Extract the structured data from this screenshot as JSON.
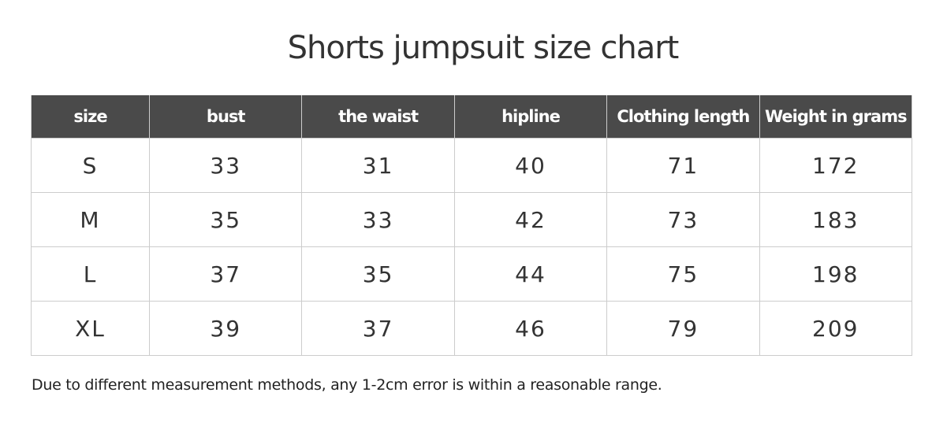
{
  "title": "Shorts jumpsuit size chart",
  "headers": [
    "size",
    "bust",
    "the waist",
    "hipline",
    "Clothing length",
    "Weight in grams"
  ],
  "rows": [
    [
      "S",
      "33",
      "31",
      "40",
      "71",
      "172"
    ],
    [
      "M",
      "35",
      "33",
      "42",
      "73",
      "183"
    ],
    [
      "L",
      "37",
      "35",
      "44",
      "75",
      "198"
    ],
    [
      "XL",
      "39",
      "37",
      "46",
      "79",
      "209"
    ]
  ],
  "note": "Due to different measurement methods, any 1-2cm error is within a reasonable range."
}
